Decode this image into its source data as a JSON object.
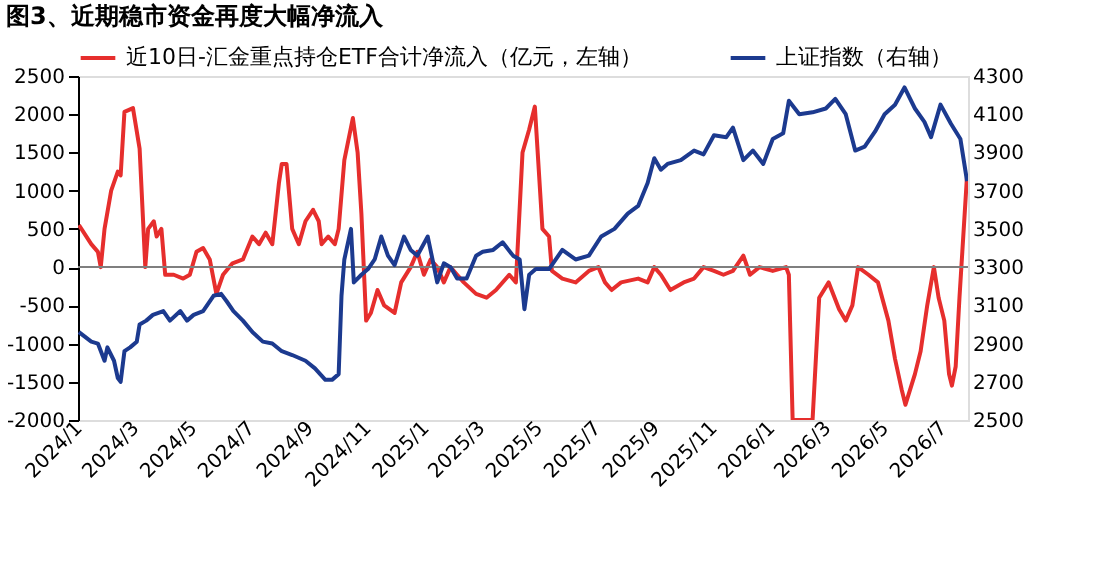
{
  "chart_data": {
    "type": "line",
    "title": "图3、近期稳市资金再度大幅净流入",
    "xlim": [
      "2024-01-01",
      "2026-07-28"
    ],
    "xticks": [
      {
        "value": "2024-01-01",
        "label": "2024/1"
      },
      {
        "value": "2024-03-01",
        "label": "2024/3"
      },
      {
        "value": "2024-05-01",
        "label": "2024/5"
      },
      {
        "value": "2024-07-01",
        "label": "2024/7"
      },
      {
        "value": "2024-09-01",
        "label": "2024/9"
      },
      {
        "value": "2024-11-01",
        "label": "2024/11"
      },
      {
        "value": "2025-01-01",
        "label": "2025/1"
      },
      {
        "value": "2025-03-01",
        "label": "2025/3"
      },
      {
        "value": "2025-05-01",
        "label": "2025/5"
      },
      {
        "value": "2025-07-01",
        "label": "2025/7"
      },
      {
        "value": "2025-09-01",
        "label": "2025/9"
      },
      {
        "value": "2025-11-01",
        "label": "2025/11"
      },
      {
        "value": "2026-01-01",
        "label": "2026/1"
      },
      {
        "value": "2026-03-01",
        "label": "2026/3"
      },
      {
        "value": "2026-05-01",
        "label": "2026/5"
      },
      {
        "value": "2026-07-01",
        "label": "2026/7"
      }
    ],
    "ylim": [
      -2000,
      2500
    ],
    "yticks": [
      -2000,
      -1500,
      -1000,
      -500,
      0,
      500,
      1000,
      1500,
      2000,
      2500
    ],
    "y2lim": [
      2500,
      4300
    ],
    "y2ticks": [
      2500,
      2700,
      2900,
      3100,
      3300,
      3500,
      3700,
      3900,
      4100,
      4300
    ],
    "grid": false,
    "legend": "top",
    "marker": "none",
    "line_style": "solid",
    "ref_lines": [
      {
        "axis": "y",
        "value": 0,
        "color": "#7f7f7f"
      }
    ],
    "series": [
      {
        "name": "近10日-汇金重点持仓ETF合计净流入（亿元，左轴）",
        "color": "#e62e2d",
        "axis": "y",
        "x": [
          "2024-01-02",
          "2024-01-15",
          "2024-01-22",
          "2024-01-25",
          "2024-01-29",
          "2024-02-05",
          "2024-02-12",
          "2024-02-15",
          "2024-02-19",
          "2024-02-28",
          "2024-03-06",
          "2024-03-12",
          "2024-03-15",
          "2024-03-21",
          "2024-03-24",
          "2024-03-29",
          "2024-04-02",
          "2024-04-11",
          "2024-04-21",
          "2024-04-28",
          "2024-05-05",
          "2024-05-12",
          "2024-05-19",
          "2024-05-26",
          "2024-06-02",
          "2024-06-12",
          "2024-06-23",
          "2024-07-03",
          "2024-07-10",
          "2024-07-17",
          "2024-07-24",
          "2024-07-31",
          "2024-08-03",
          "2024-08-08",
          "2024-08-14",
          "2024-08-21",
          "2024-08-28",
          "2024-09-05",
          "2024-09-11",
          "2024-09-14",
          "2024-09-21",
          "2024-09-28",
          "2024-10-02",
          "2024-10-08",
          "2024-10-17",
          "2024-10-22",
          "2024-10-26",
          "2024-10-31",
          "2024-11-05",
          "2024-11-12",
          "2024-11-19",
          "2024-11-30",
          "2024-12-07",
          "2024-12-17",
          "2024-12-24",
          "2024-12-31",
          "2025-01-07",
          "2025-01-14",
          "2025-01-21",
          "2025-01-28",
          "2025-02-04",
          "2025-02-11",
          "2025-02-24",
          "2025-03-07",
          "2025-03-17",
          "2025-03-31",
          "2025-04-07",
          "2025-04-14",
          "2025-04-21",
          "2025-04-27",
          "2025-05-05",
          "2025-05-12",
          "2025-05-15",
          "2025-05-26",
          "2025-06-09",
          "2025-06-23",
          "2025-07-03",
          "2025-07-10",
          "2025-07-17",
          "2025-07-27",
          "2025-08-14",
          "2025-08-24",
          "2025-08-31",
          "2025-09-07",
          "2025-09-17",
          "2025-10-01",
          "2025-10-12",
          "2025-10-22",
          "2025-11-02",
          "2025-11-12",
          "2025-11-22",
          "2025-12-03",
          "2025-12-10",
          "2025-12-20",
          "2026-01-03",
          "2026-01-17",
          "2026-01-20",
          "2026-01-24",
          "2026-02-14",
          "2026-02-21",
          "2026-03-03",
          "2026-03-14",
          "2026-03-21",
          "2026-03-28",
          "2026-04-03",
          "2026-04-14",
          "2026-04-24",
          "2026-05-05",
          "2026-05-12",
          "2026-05-19",
          "2026-05-23",
          "2026-06-02",
          "2026-06-08",
          "2026-06-15",
          "2026-06-22",
          "2026-06-27",
          "2026-07-03",
          "2026-07-08",
          "2026-07-11",
          "2026-07-15",
          "2026-07-19",
          "2026-07-22",
          "2026-07-27"
        ],
        "values": [
          550,
          300,
          200,
          0,
          500,
          1000,
          1250,
          1200,
          2030,
          2080,
          1550,
          0,
          500,
          600,
          400,
          500,
          -100,
          -100,
          -150,
          -100,
          200,
          250,
          100,
          -350,
          -100,
          50,
          100,
          400,
          300,
          450,
          300,
          1100,
          1350,
          1350,
          500,
          300,
          600,
          750,
          600,
          300,
          400,
          300,
          500,
          1400,
          1950,
          1500,
          700,
          -700,
          -600,
          -300,
          -500,
          -600,
          -200,
          0,
          200,
          -100,
          100,
          0,
          -200,
          0,
          -100,
          -200,
          -350,
          -400,
          -300,
          -100,
          -200,
          1500,
          1800,
          2100,
          500,
          400,
          -50,
          -150,
          -200,
          -50,
          0,
          -200,
          -300,
          -200,
          -150,
          -200,
          0,
          -100,
          -300,
          -200,
          -150,
          0,
          -50,
          -100,
          -50,
          150,
          -100,
          0,
          -50,
          0,
          -100,
          -2000,
          -2000,
          -400,
          -200,
          -550,
          -700,
          -500,
          0,
          -100,
          -200,
          -700,
          -1200,
          -1600,
          -1800,
          -1400,
          -1100,
          -500,
          0,
          -400,
          -700,
          -1400,
          -1550,
          -1300,
          -400,
          200,
          1200
        ]
      },
      {
        "name": "上证指数（右轴）",
        "color": "#1c3a8f",
        "axis": "y2",
        "x": [
          "2024-01-02",
          "2024-01-15",
          "2024-01-22",
          "2024-01-29",
          "2024-02-01",
          "2024-02-08",
          "2024-02-12",
          "2024-02-15",
          "2024-02-19",
          "2024-02-25",
          "2024-03-03",
          "2024-03-06",
          "2024-03-13",
          "2024-03-20",
          "2024-03-31",
          "2024-04-07",
          "2024-04-18",
          "2024-04-25",
          "2024-05-02",
          "2024-05-12",
          "2024-05-23",
          "2024-05-31",
          "2024-06-06",
          "2024-06-13",
          "2024-06-23",
          "2024-07-03",
          "2024-07-14",
          "2024-07-24",
          "2024-08-03",
          "2024-08-14",
          "2024-08-28",
          "2024-09-07",
          "2024-09-18",
          "2024-09-25",
          "2024-10-02",
          "2024-10-05",
          "2024-10-08",
          "2024-10-15",
          "2024-10-18",
          "2024-10-26",
          "2024-11-02",
          "2024-11-09",
          "2024-11-16",
          "2024-11-23",
          "2024-11-30",
          "2024-12-10",
          "2024-12-17",
          "2024-12-24",
          "2025-01-04",
          "2025-01-14",
          "2025-01-21",
          "2025-01-28",
          "2025-02-04",
          "2025-02-14",
          "2025-02-24",
          "2025-03-03",
          "2025-03-14",
          "2025-03-24",
          "2025-04-04",
          "2025-04-11",
          "2025-04-16",
          "2025-04-21",
          "2025-04-28",
          "2025-05-12",
          "2025-05-26",
          "2025-06-09",
          "2025-06-23",
          "2025-07-06",
          "2025-07-20",
          "2025-08-03",
          "2025-08-14",
          "2025-08-24",
          "2025-08-31",
          "2025-09-07",
          "2025-09-14",
          "2025-09-28",
          "2025-10-12",
          "2025-10-22",
          "2025-11-02",
          "2025-11-15",
          "2025-11-22",
          "2025-12-03",
          "2025-12-13",
          "2025-12-24",
          "2026-01-03",
          "2026-01-14",
          "2026-01-20",
          "2026-01-31",
          "2026-02-14",
          "2026-02-28",
          "2026-03-10",
          "2026-03-21",
          "2026-03-31",
          "2026-04-10",
          "2026-04-21",
          "2026-05-01",
          "2026-05-12",
          "2026-05-22",
          "2026-06-02",
          "2026-06-12",
          "2026-06-19",
          "2026-06-29",
          "2026-07-10",
          "2026-07-20",
          "2026-07-27"
        ],
        "values": [
          2960,
          2910,
          2900,
          2810,
          2880,
          2810,
          2720,
          2700,
          2860,
          2880,
          2910,
          3000,
          3020,
          3050,
          3070,
          3020,
          3070,
          3020,
          3050,
          3070,
          3150,
          3160,
          3120,
          3070,
          3020,
          2960,
          2910,
          2900,
          2860,
          2840,
          2810,
          2770,
          2710,
          2710,
          2740,
          3150,
          3340,
          3500,
          3220,
          3260,
          3290,
          3340,
          3460,
          3360,
          3310,
          3460,
          3390,
          3360,
          3460,
          3220,
          3320,
          3300,
          3240,
          3240,
          3360,
          3380,
          3390,
          3430,
          3360,
          3340,
          3080,
          3260,
          3290,
          3290,
          3390,
          3340,
          3360,
          3460,
          3500,
          3580,
          3620,
          3740,
          3870,
          3810,
          3840,
          3860,
          3910,
          3890,
          3990,
          3980,
          4030,
          3860,
          3910,
          3840,
          3970,
          4000,
          4170,
          4100,
          4110,
          4130,
          4180,
          4100,
          3910,
          3930,
          4010,
          4100,
          4150,
          4240,
          4130,
          4060,
          3980,
          4150,
          4050,
          3970,
          3750
        ]
      }
    ]
  }
}
